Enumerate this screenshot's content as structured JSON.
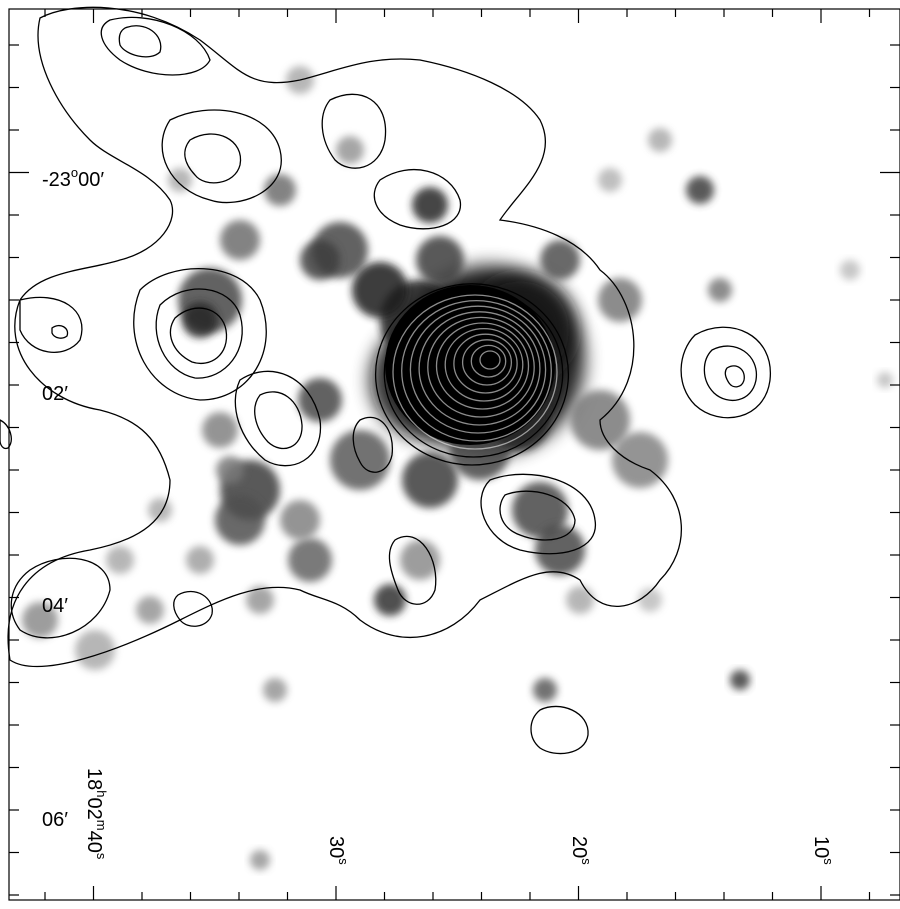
{
  "image": {
    "kind": "astronomical sky map: greyscale pixel image with black contour overlay",
    "palette": {
      "background": "#ffffff",
      "ink": "#000000",
      "contour": "#000000"
    }
  },
  "axes": {
    "ra_labels": [
      {
        "h": "18",
        "hsup": "h",
        "m": "02",
        "msup": "m",
        "s": "40",
        "ssup": "s"
      },
      {
        "s": "30",
        "ssup": "s"
      },
      {
        "s": "20",
        "ssup": "s"
      },
      {
        "s": "10",
        "ssup": "s"
      }
    ],
    "dec_labels": [
      {
        "deg": "-23",
        "degsup": "o",
        "min": "00",
        "sym": "′"
      },
      {
        "min": "02",
        "sym": "′"
      },
      {
        "min": "04",
        "sym": "′"
      },
      {
        "min": "06",
        "sym": "′"
      }
    ]
  }
}
